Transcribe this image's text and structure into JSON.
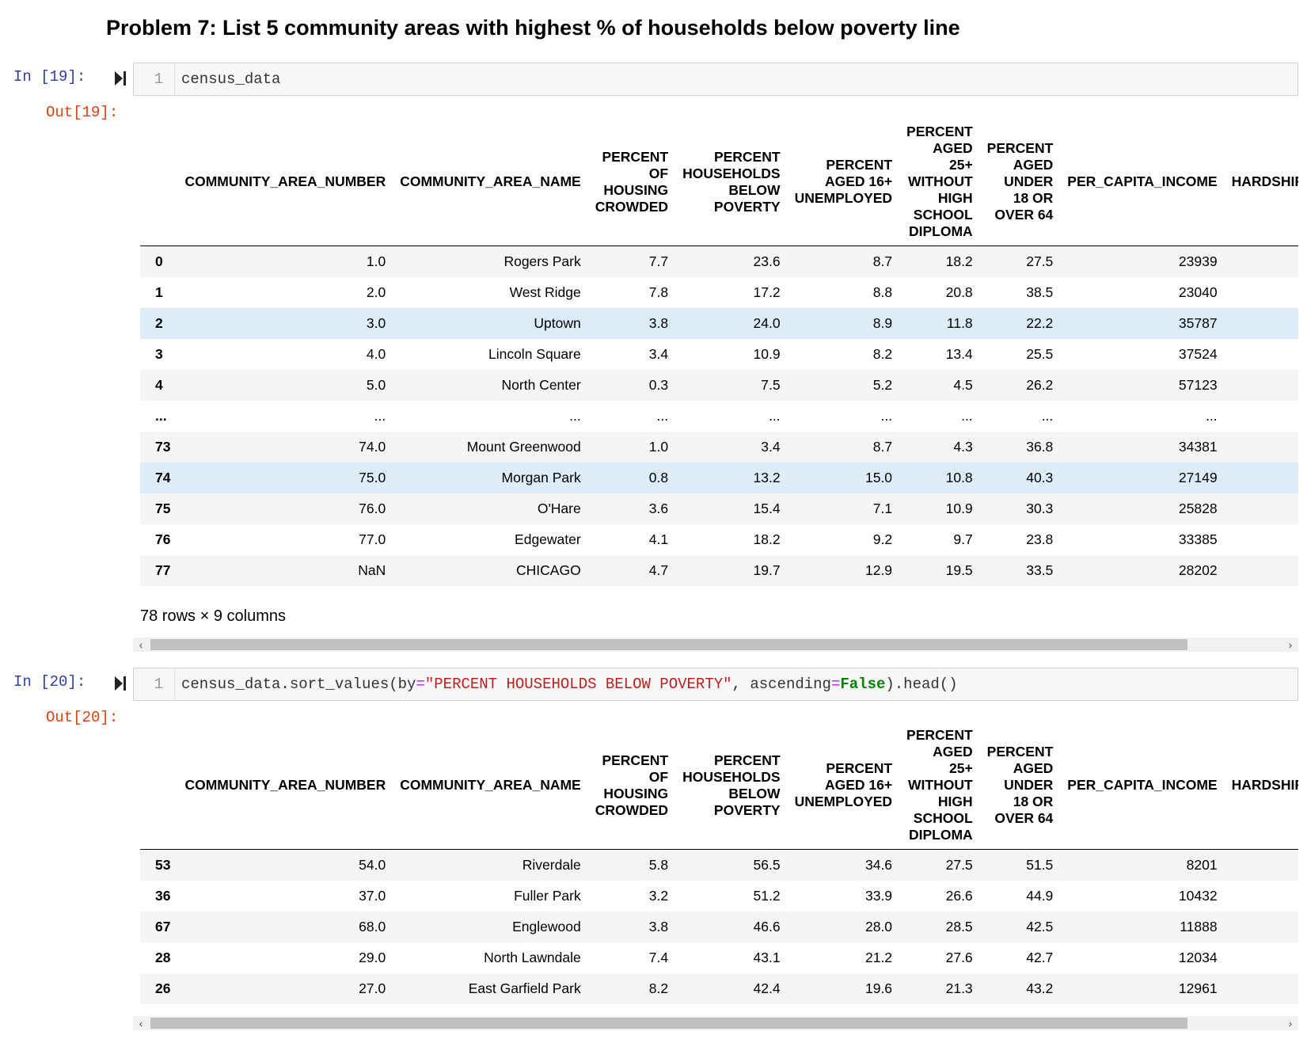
{
  "heading": "Problem 7: List 5 community areas with highest % of households below poverty line",
  "cell19": {
    "in_prompt": "In [19]:",
    "out_prompt": "Out[19]:",
    "line_no": "1",
    "code": "census_data",
    "rows_note": "78 rows × 9 columns",
    "rows": [
      {
        "idx": "0",
        "cells": [
          "1.0",
          "Rogers Park",
          "7.7",
          "23.6",
          "8.7",
          "18.2",
          "27.5",
          "23939"
        ]
      },
      {
        "idx": "1",
        "cells": [
          "2.0",
          "West Ridge",
          "7.8",
          "17.2",
          "8.8",
          "20.8",
          "38.5",
          "23040"
        ]
      },
      {
        "idx": "2",
        "cells": [
          "3.0",
          "Uptown",
          "3.8",
          "24.0",
          "8.9",
          "11.8",
          "22.2",
          "35787"
        ]
      },
      {
        "idx": "3",
        "cells": [
          "4.0",
          "Lincoln Square",
          "3.4",
          "10.9",
          "8.2",
          "13.4",
          "25.5",
          "37524"
        ]
      },
      {
        "idx": "4",
        "cells": [
          "5.0",
          "North Center",
          "0.3",
          "7.5",
          "5.2",
          "4.5",
          "26.2",
          "57123"
        ]
      },
      {
        "idx": "...",
        "cells": [
          "...",
          "...",
          "...",
          "...",
          "...",
          "...",
          "...",
          "..."
        ]
      },
      {
        "idx": "73",
        "cells": [
          "74.0",
          "Mount Greenwood",
          "1.0",
          "3.4",
          "8.7",
          "4.3",
          "36.8",
          "34381"
        ]
      },
      {
        "idx": "74",
        "cells": [
          "75.0",
          "Morgan Park",
          "0.8",
          "13.2",
          "15.0",
          "10.8",
          "40.3",
          "27149"
        ]
      },
      {
        "idx": "75",
        "cells": [
          "76.0",
          "O'Hare",
          "3.6",
          "15.4",
          "7.1",
          "10.9",
          "30.3",
          "25828"
        ]
      },
      {
        "idx": "76",
        "cells": [
          "77.0",
          "Edgewater",
          "4.1",
          "18.2",
          "9.2",
          "9.7",
          "23.8",
          "33385"
        ]
      },
      {
        "idx": "77",
        "cells": [
          "NaN",
          "CHICAGO",
          "4.7",
          "19.7",
          "12.9",
          "19.5",
          "33.5",
          "28202"
        ]
      }
    ]
  },
  "cell20": {
    "in_prompt": "In [20]:",
    "out_prompt": "Out[20]:",
    "line_no": "1",
    "code": {
      "p1": "census_data.sort_values(by",
      "eq1": "=",
      "str": "\"PERCENT HOUSEHOLDS BELOW POVERTY\"",
      "p2": ", ascending",
      "eq2": "=",
      "kw": "False",
      "p3": ").head()"
    },
    "rows": [
      {
        "idx": "53",
        "cells": [
          "54.0",
          "Riverdale",
          "5.8",
          "56.5",
          "34.6",
          "27.5",
          "51.5",
          "8201"
        ]
      },
      {
        "idx": "36",
        "cells": [
          "37.0",
          "Fuller Park",
          "3.2",
          "51.2",
          "33.9",
          "26.6",
          "44.9",
          "10432"
        ]
      },
      {
        "idx": "67",
        "cells": [
          "68.0",
          "Englewood",
          "3.8",
          "46.6",
          "28.0",
          "28.5",
          "42.5",
          "11888"
        ]
      },
      {
        "idx": "28",
        "cells": [
          "29.0",
          "North Lawndale",
          "7.4",
          "43.1",
          "21.2",
          "27.6",
          "42.7",
          "12034"
        ]
      },
      {
        "idx": "26",
        "cells": [
          "27.0",
          "East Garfield Park",
          "8.2",
          "42.4",
          "19.6",
          "21.3",
          "43.2",
          "12961"
        ]
      }
    ]
  },
  "columns": [
    [
      "COMMUNITY_AREA_NUMBER"
    ],
    [
      "COMMUNITY_AREA_NAME"
    ],
    [
      "PERCENT",
      "OF",
      "HOUSING",
      "CROWDED"
    ],
    [
      "PERCENT",
      "HOUSEHOLDS",
      "BELOW",
      "POVERTY"
    ],
    [
      "PERCENT",
      "AGED 16+",
      "UNEMPLOYED"
    ],
    [
      "PERCENT",
      "AGED",
      "25+",
      "WITHOUT",
      "HIGH",
      "SCHOOL",
      "DIPLOMA"
    ],
    [
      "PERCENT",
      "AGED",
      "UNDER",
      "18 OR",
      "OVER 64"
    ],
    [
      "PER_CAPITA_INCOME"
    ],
    [
      "HARDSHIP_INDEX"
    ]
  ],
  "scrollbar": {
    "left_arrow": "‹",
    "right_arrow": "›"
  },
  "colors": {
    "in_prompt": "#303f9f",
    "out_prompt": "#d84315",
    "row_hover": "#dcecf9",
    "string": "#ba2121",
    "keyword": "#008000",
    "operator": "#aa22ff"
  }
}
